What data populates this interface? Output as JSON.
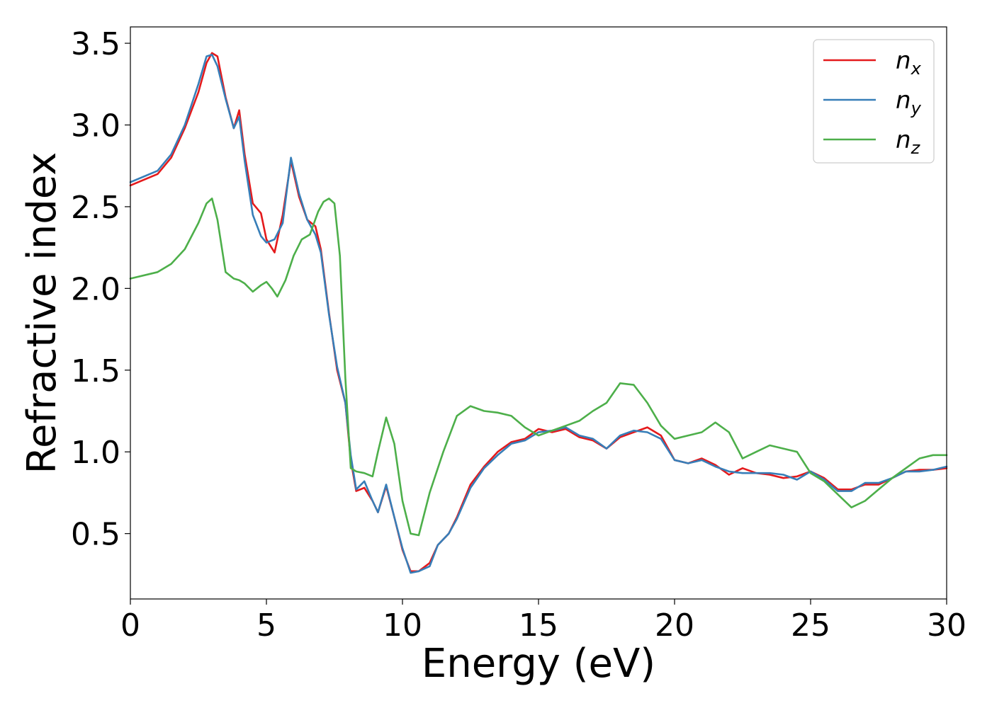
{
  "chart_data": {
    "type": "line",
    "title": "",
    "xlabel": "Energy (eV)",
    "ylabel": "Refractive index",
    "xlim": [
      0,
      30
    ],
    "ylim": [
      0.1,
      3.6
    ],
    "xticks": [
      0,
      5,
      10,
      15,
      20,
      25,
      30
    ],
    "xtick_labels": [
      "0",
      "5",
      "10",
      "15",
      "20",
      "25",
      "30"
    ],
    "yticks": [
      0.5,
      1.0,
      1.5,
      2.0,
      2.5,
      3.0,
      3.5
    ],
    "ytick_labels": [
      "0.5",
      "1.0",
      "1.5",
      "2.0",
      "2.5",
      "3.0",
      "3.5"
    ],
    "grid": false,
    "legend_position": "top-right",
    "series": [
      {
        "name": "n_x",
        "legend_base": "n",
        "legend_sub": "x",
        "color": "#e41a1c",
        "x": [
          0,
          1,
          1.5,
          2,
          2.5,
          2.8,
          3.0,
          3.2,
          3.5,
          3.8,
          4.0,
          4.2,
          4.5,
          4.8,
          5.0,
          5.3,
          5.6,
          5.9,
          6.2,
          6.5,
          6.8,
          7.0,
          7.3,
          7.6,
          7.9,
          8.1,
          8.3,
          8.6,
          8.9,
          9.1,
          9.4,
          9.7,
          10.0,
          10.3,
          10.6,
          11.0,
          11.3,
          11.7,
          12.0,
          12.5,
          13.0,
          13.5,
          14.0,
          14.5,
          15.0,
          15.5,
          16.0,
          16.5,
          17.0,
          17.5,
          18.0,
          18.5,
          19.0,
          19.5,
          20.0,
          20.5,
          21.0,
          21.5,
          22.0,
          22.5,
          23.0,
          23.5,
          24.0,
          24.5,
          25.0,
          25.5,
          26.0,
          26.5,
          27.0,
          27.5,
          28.0,
          28.5,
          29.0,
          29.5,
          30.0
        ],
        "y": [
          2.63,
          2.7,
          2.8,
          2.98,
          3.2,
          3.38,
          3.44,
          3.42,
          3.17,
          2.98,
          3.09,
          2.82,
          2.52,
          2.46,
          2.3,
          2.22,
          2.45,
          2.78,
          2.56,
          2.42,
          2.38,
          2.24,
          1.85,
          1.5,
          1.3,
          0.95,
          0.76,
          0.78,
          0.7,
          0.63,
          0.79,
          0.6,
          0.4,
          0.27,
          0.27,
          0.32,
          0.43,
          0.5,
          0.6,
          0.8,
          0.91,
          1.0,
          1.06,
          1.08,
          1.14,
          1.12,
          1.14,
          1.09,
          1.07,
          1.02,
          1.09,
          1.12,
          1.15,
          1.1,
          0.95,
          0.93,
          0.96,
          0.92,
          0.86,
          0.9,
          0.87,
          0.86,
          0.84,
          0.85,
          0.88,
          0.84,
          0.77,
          0.77,
          0.8,
          0.8,
          0.84,
          0.88,
          0.89,
          0.89,
          0.9
        ]
      },
      {
        "name": "n_y",
        "legend_base": "n",
        "legend_sub": "y",
        "color": "#377eb8",
        "x": [
          0,
          1,
          1.5,
          2,
          2.5,
          2.8,
          3.0,
          3.2,
          3.5,
          3.8,
          4.0,
          4.2,
          4.5,
          4.8,
          5.0,
          5.3,
          5.6,
          5.9,
          6.2,
          6.5,
          6.8,
          7.0,
          7.3,
          7.6,
          7.9,
          8.1,
          8.3,
          8.6,
          8.9,
          9.1,
          9.4,
          9.7,
          10.0,
          10.3,
          10.6,
          11.0,
          11.3,
          11.7,
          12.0,
          12.5,
          13.0,
          13.5,
          14.0,
          14.5,
          15.0,
          15.5,
          16.0,
          16.5,
          17.0,
          17.5,
          18.0,
          18.5,
          19.0,
          19.5,
          20.0,
          20.5,
          21.0,
          21.5,
          22.0,
          22.5,
          23.0,
          23.5,
          24.0,
          24.5,
          25.0,
          25.5,
          26.0,
          26.5,
          27.0,
          27.5,
          28.0,
          28.5,
          29.0,
          29.5,
          30.0
        ],
        "y": [
          2.65,
          2.72,
          2.82,
          3.0,
          3.25,
          3.42,
          3.43,
          3.36,
          3.16,
          2.98,
          3.05,
          2.78,
          2.45,
          2.32,
          2.28,
          2.3,
          2.4,
          2.8,
          2.58,
          2.42,
          2.33,
          2.22,
          1.84,
          1.52,
          1.3,
          0.98,
          0.77,
          0.82,
          0.7,
          0.63,
          0.8,
          0.6,
          0.41,
          0.26,
          0.27,
          0.3,
          0.43,
          0.5,
          0.59,
          0.78,
          0.9,
          0.98,
          1.05,
          1.07,
          1.12,
          1.13,
          1.15,
          1.1,
          1.08,
          1.02,
          1.1,
          1.13,
          1.12,
          1.08,
          0.95,
          0.93,
          0.95,
          0.91,
          0.88,
          0.87,
          0.87,
          0.87,
          0.86,
          0.83,
          0.88,
          0.83,
          0.76,
          0.76,
          0.81,
          0.81,
          0.84,
          0.88,
          0.88,
          0.89,
          0.91
        ]
      },
      {
        "name": "n_z",
        "legend_base": "n",
        "legend_sub": "z",
        "color": "#4daf4a",
        "x": [
          0,
          1,
          1.5,
          2,
          2.5,
          2.8,
          3.0,
          3.2,
          3.5,
          3.8,
          4.0,
          4.2,
          4.5,
          4.8,
          5.0,
          5.2,
          5.4,
          5.7,
          6.0,
          6.3,
          6.6,
          6.9,
          7.1,
          7.3,
          7.5,
          7.7,
          7.9,
          8.1,
          8.3,
          8.6,
          8.9,
          9.1,
          9.4,
          9.7,
          10.0,
          10.3,
          10.6,
          11.0,
          11.5,
          12.0,
          12.5,
          13.0,
          13.5,
          14.0,
          14.5,
          15.0,
          15.5,
          16.0,
          16.5,
          17.0,
          17.5,
          18.0,
          18.5,
          19.0,
          19.5,
          20.0,
          20.5,
          21.0,
          21.5,
          22.0,
          22.5,
          23.0,
          23.5,
          24.0,
          24.5,
          25.0,
          25.5,
          26.0,
          26.5,
          27.0,
          27.5,
          28.0,
          28.5,
          29.0,
          29.5,
          30.0
        ],
        "y": [
          2.06,
          2.1,
          2.15,
          2.24,
          2.4,
          2.52,
          2.55,
          2.42,
          2.1,
          2.06,
          2.05,
          2.03,
          1.98,
          2.02,
          2.04,
          2.0,
          1.95,
          2.05,
          2.2,
          2.3,
          2.33,
          2.47,
          2.53,
          2.55,
          2.52,
          2.2,
          1.45,
          0.9,
          0.88,
          0.87,
          0.85,
          1.0,
          1.21,
          1.05,
          0.7,
          0.5,
          0.49,
          0.75,
          1.0,
          1.22,
          1.28,
          1.25,
          1.24,
          1.22,
          1.15,
          1.1,
          1.13,
          1.16,
          1.19,
          1.25,
          1.3,
          1.42,
          1.41,
          1.3,
          1.16,
          1.08,
          1.1,
          1.12,
          1.18,
          1.12,
          0.96,
          1.0,
          1.04,
          1.02,
          1.0,
          0.87,
          0.82,
          0.74,
          0.66,
          0.7,
          0.77,
          0.84,
          0.9,
          0.96,
          0.98,
          0.98
        ]
      }
    ]
  }
}
